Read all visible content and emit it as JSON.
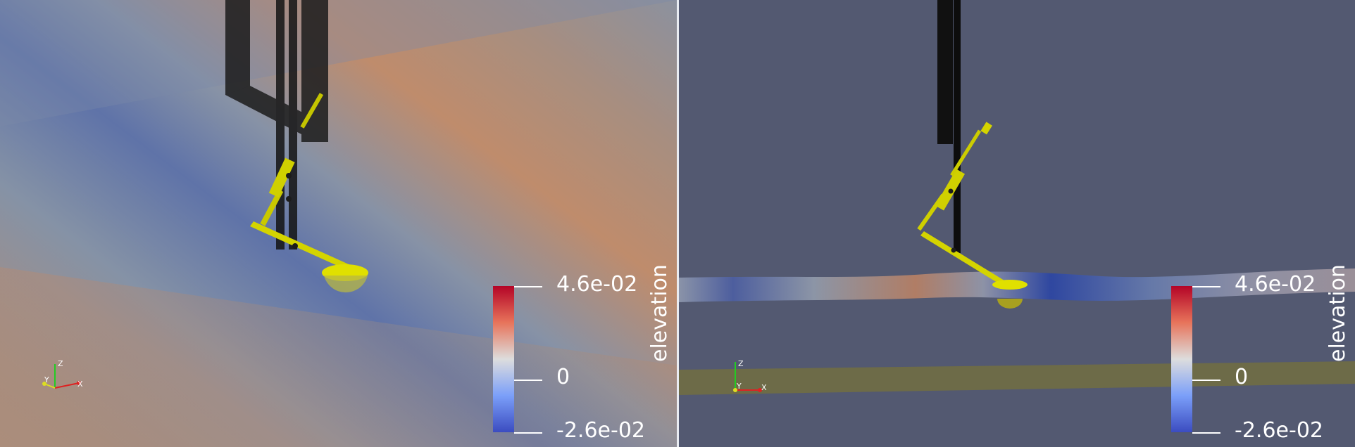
{
  "scalar_field": "elevation",
  "colorbar": {
    "title": "elevation",
    "max_label": "4.6e-02",
    "mid_label": "0",
    "min_label": "-2.6e-02",
    "colormap": [
      "#b40426",
      "#e7745b",
      "#dddddd",
      "#7b9ff9",
      "#3b4cc0"
    ]
  },
  "axes": {
    "x": "X",
    "y": "Y",
    "z": "Z"
  },
  "colors": {
    "device": "#d4d400",
    "frame": "#1e1e1e",
    "background_right": "#535971",
    "seabed_band": "#6d6b48"
  }
}
